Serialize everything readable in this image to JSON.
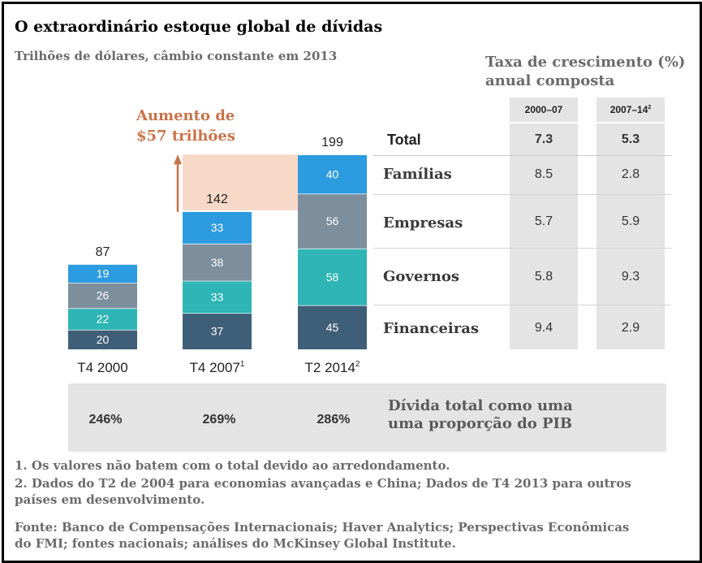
{
  "title": "O extraordinário estoque global de dívidas",
  "subtitle": "Trilhões de dólares,  câmbio constante em 2013",
  "growth_table": {
    "title_line1": "Taxa de crescimento (%)",
    "title_line2": "anual composta",
    "col1_head": "2000–07",
    "col2_head": "2007–14",
    "col2_sup": "2",
    "total_label": "Total",
    "rows": [
      {
        "label": "Total",
        "a": "7.3",
        "b": "5.3"
      },
      {
        "label": "Famílias",
        "a": "8.5",
        "b": "2.8"
      },
      {
        "label": "Empresas",
        "a": "5.7",
        "b": "5.9"
      },
      {
        "label": "Governos",
        "a": "5.8",
        "b": "9.3"
      },
      {
        "label": "Financeiras",
        "a": "9.4",
        "b": "2.9"
      }
    ]
  },
  "increase_annotation": {
    "line1": "Aumento de",
    "line2": "$57 trilhões"
  },
  "gdp_row": {
    "label_line1": "Dívida total como uma",
    "label_line2": "uma proporção do PIB",
    "values": [
      "246%",
      "269%",
      "286%"
    ]
  },
  "notes": {
    "note1": "1. Os valores não batem com o total devido ao arredondamento.",
    "note2_line1": "2. Dados do T2 de 2004 para economias avançadas e China; Dados de T4 2013 para outros",
    "note2_line2": "países em desenvolvimento.",
    "source_line1": "Fonte: Banco de Compensações Internacionais; Haver Analytics; Perspectivas Econômicas",
    "source_line2": "do FMI; fontes nacionais; análises do McKinsey Global Institute."
  },
  "chart_data": {
    "type": "bar",
    "stacked": true,
    "categories": [
      "T4 2000",
      "T4  2007",
      "T2 2014"
    ],
    "category_sups": [
      "",
      "1",
      "2"
    ],
    "totals": [
      87,
      142,
      199
    ],
    "series": [
      {
        "name": "Financeiras",
        "values": [
          20,
          37,
          45
        ],
        "color": "#3f5f78"
      },
      {
        "name": "Governos",
        "values": [
          22,
          33,
          58
        ],
        "color": "#2fb5b5"
      },
      {
        "name": "Empresas",
        "values": [
          26,
          38,
          56
        ],
        "color": "#7d8e9c"
      },
      {
        "name": "Famílias",
        "values": [
          19,
          33,
          40
        ],
        "color": "#2d9be0"
      }
    ],
    "colors": {
      "increase_band": "#f8d9c8",
      "arrow": "#c8734a"
    }
  }
}
